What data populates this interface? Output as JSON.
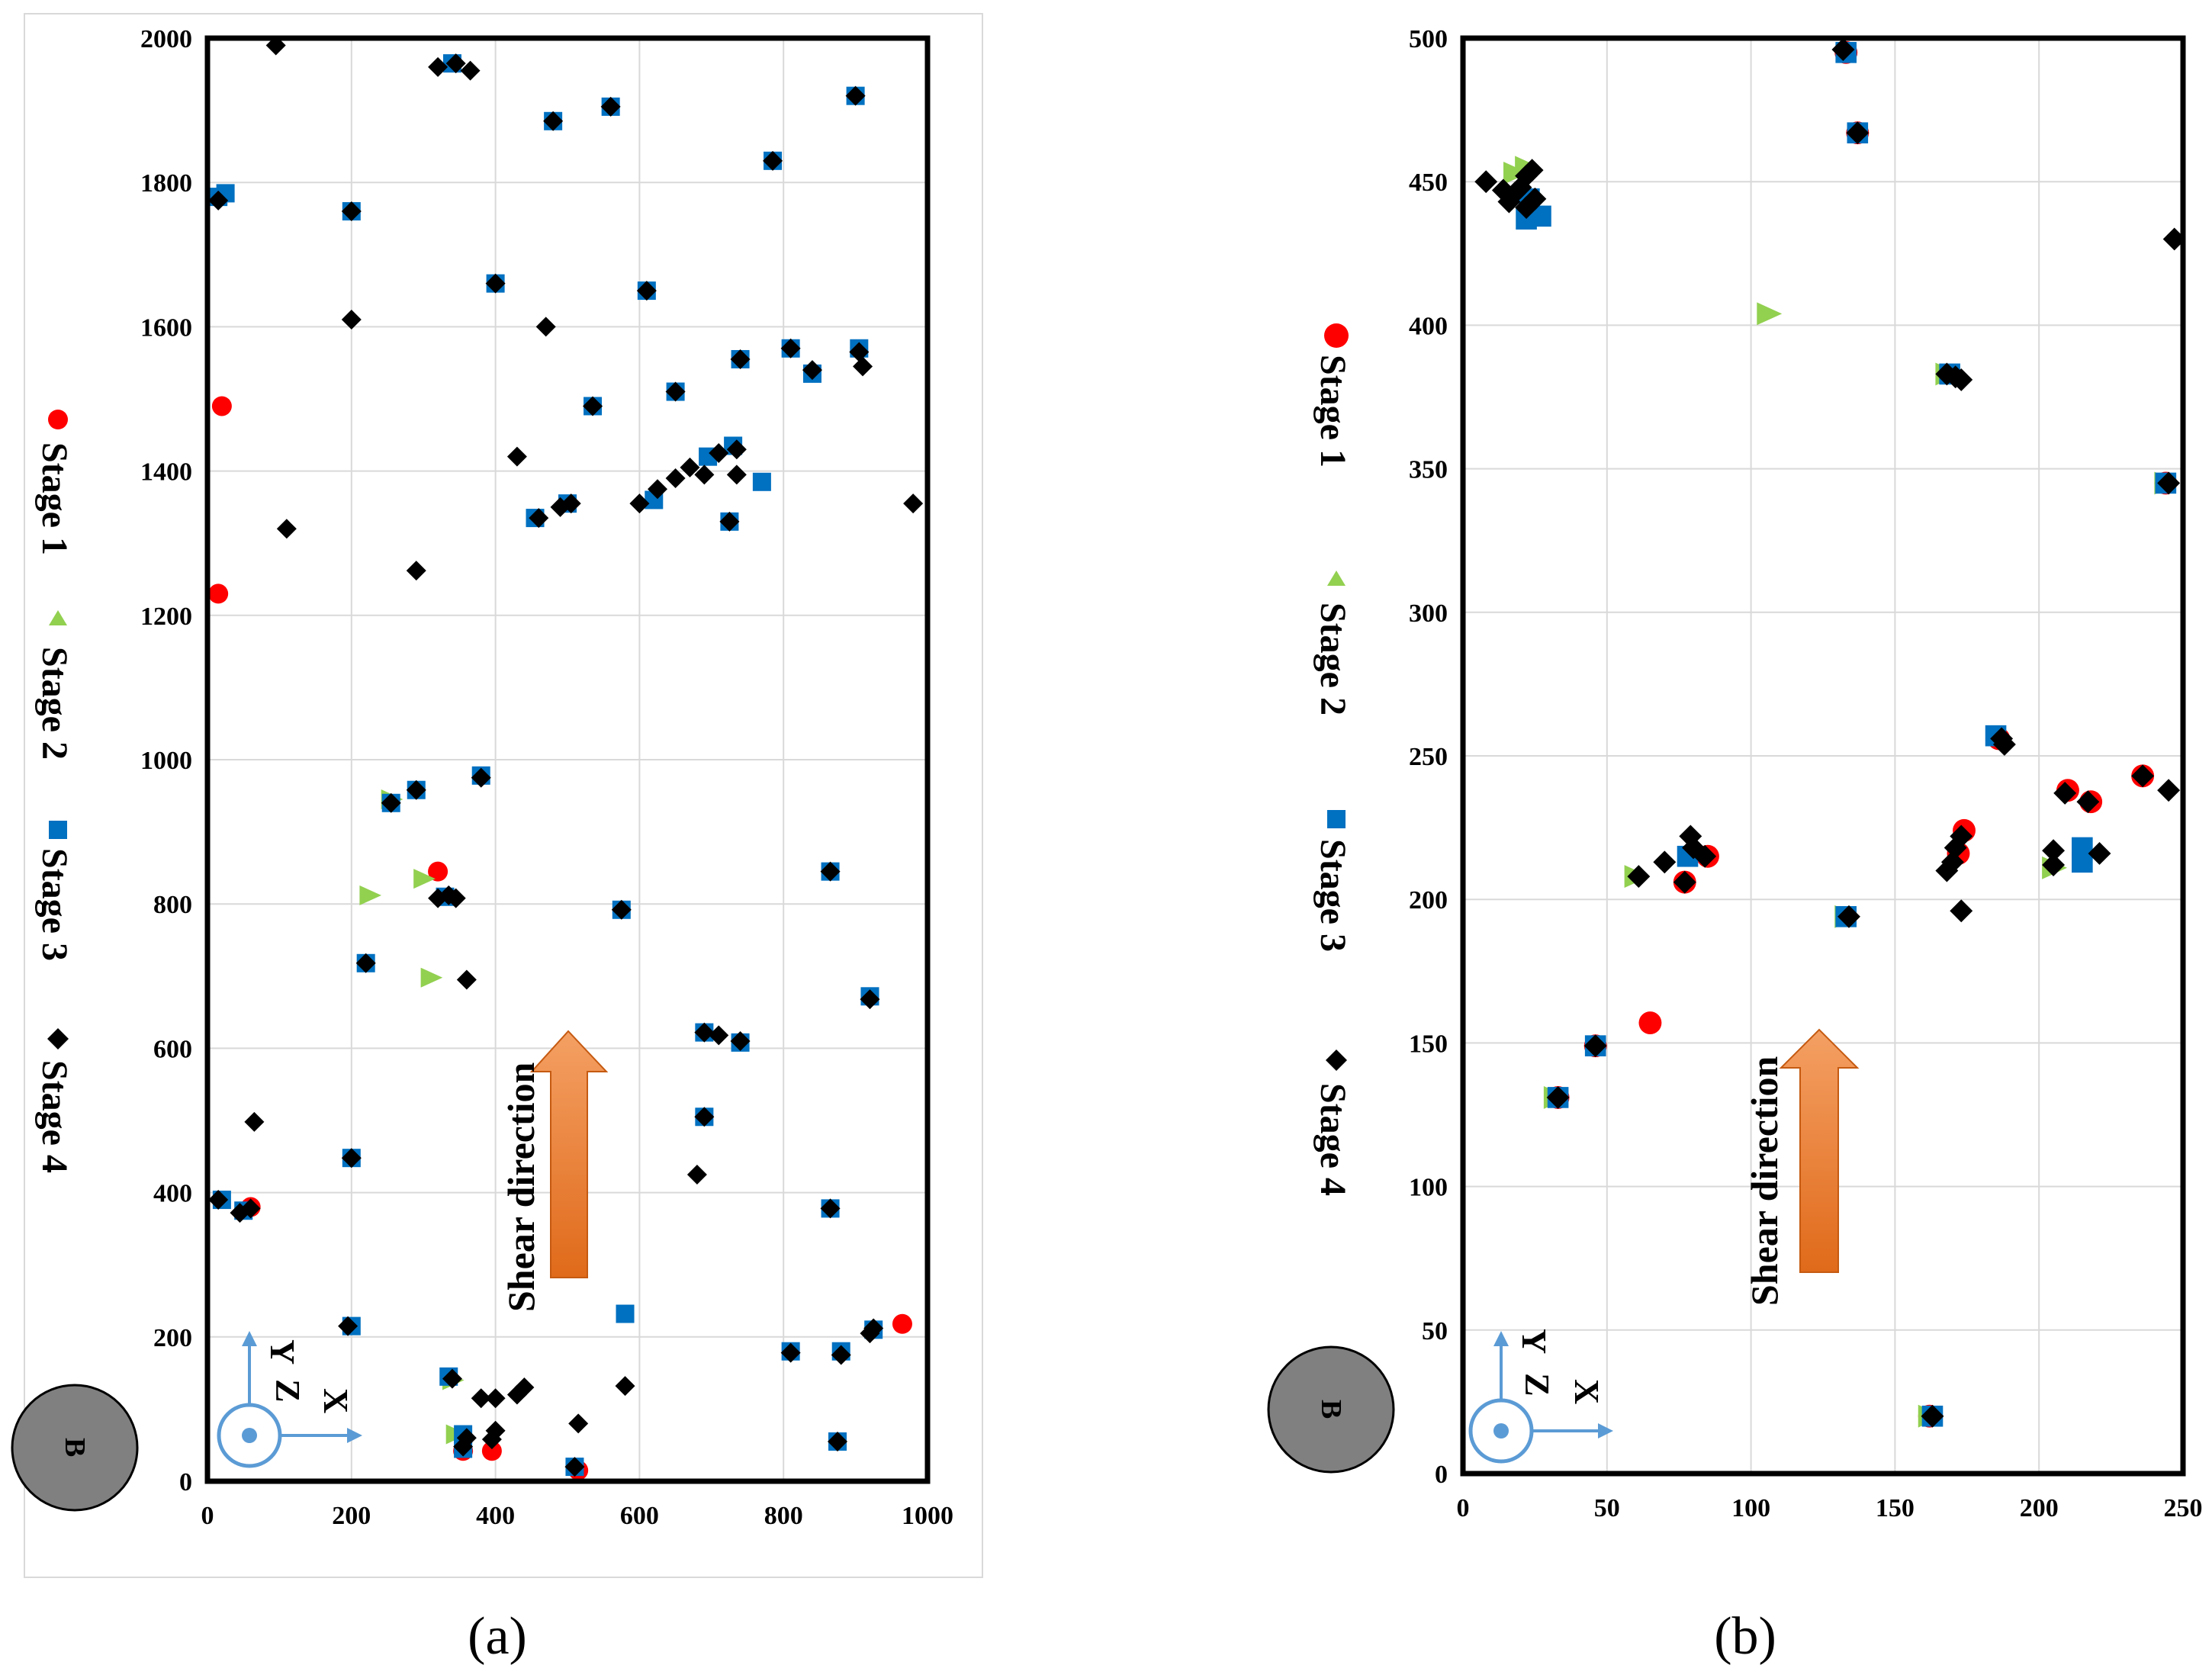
{
  "colors": {
    "stage1": "#ff0000",
    "stage2": "#92d050",
    "stage3": "#0070c0",
    "stage4": "#000000",
    "arrow": "#ed7d31",
    "axis_icon": "#5b9bd5",
    "grid": "#d9d9d9"
  },
  "chart_data": [
    {
      "type": "scatter",
      "panel_label": "(a)",
      "xlim": [
        0,
        1000
      ],
      "ylim": [
        0,
        2000
      ],
      "xticks": [
        0,
        200,
        400,
        600,
        800,
        1000
      ],
      "yticks": [
        0,
        200,
        400,
        600,
        800,
        1000,
        1200,
        1400,
        1600,
        1800,
        2000
      ],
      "legend": [
        "Stage 1",
        "Stage 2",
        "Stage 3",
        "Stage 4"
      ],
      "legend_position": "left, vertical",
      "annotation": "Shear direction",
      "axes_icon": {
        "y": "Y",
        "z": "Z",
        "x": "X"
      },
      "corner_marker": "B",
      "series": [
        {
          "name": "Stage 1",
          "marker": "circle",
          "points": [
            [
              15,
              1230
            ],
            [
              20,
              1490
            ],
            [
              320,
              845
            ],
            [
              965,
              218
            ],
            [
              355,
              42
            ],
            [
              395,
              42
            ],
            [
              60,
              380
            ],
            [
              515,
              15
            ]
          ]
        },
        {
          "name": "Stage 2",
          "marker": "triangle",
          "points": [
            [
              225,
              812
            ],
            [
              310,
              698
            ],
            [
              300,
              835
            ],
            [
              255,
              945
            ],
            [
              340,
              140
            ],
            [
              345,
              65
            ]
          ]
        },
        {
          "name": "Stage 3",
          "marker": "square",
          "points": [
            [
              15,
              1780
            ],
            [
              25,
              1785
            ],
            [
              200,
              1760
            ],
            [
              340,
              1965
            ],
            [
              480,
              1885
            ],
            [
              560,
              1905
            ],
            [
              900,
              1920
            ],
            [
              785,
              1830
            ],
            [
              400,
              1660
            ],
            [
              610,
              1650
            ],
            [
              535,
              1490
            ],
            [
              650,
              1510
            ],
            [
              740,
              1555
            ],
            [
              810,
              1570
            ],
            [
              840,
              1535
            ],
            [
              905,
              1570
            ],
            [
              455,
              1335
            ],
            [
              500,
              1355
            ],
            [
              620,
              1360
            ],
            [
              695,
              1420
            ],
            [
              730,
              1435
            ],
            [
              770,
              1385
            ],
            [
              725,
              1330
            ],
            [
              380,
              978
            ],
            [
              290,
              958
            ],
            [
              255,
              940
            ],
            [
              330,
              810
            ],
            [
              220,
              718
            ],
            [
              575,
              792
            ],
            [
              865,
              845
            ],
            [
              690,
              622
            ],
            [
              740,
              608
            ],
            [
              690,
              505
            ],
            [
              200,
              448
            ],
            [
              865,
              378
            ],
            [
              20,
              390
            ],
            [
              50,
              375
            ],
            [
              200,
              215
            ],
            [
              580,
              232
            ],
            [
              810,
              180
            ],
            [
              880,
              180
            ],
            [
              925,
              210
            ],
            [
              875,
              55
            ],
            [
              335,
              145
            ],
            [
              355,
              45
            ],
            [
              510,
              20
            ],
            [
              920,
              672
            ],
            [
              355,
              65
            ]
          ]
        },
        {
          "name": "Stage 4",
          "marker": "diamond",
          "points": [
            [
              95,
              1990
            ],
            [
              320,
              1960
            ],
            [
              345,
              1965
            ],
            [
              365,
              1955
            ],
            [
              15,
              1775
            ],
            [
              200,
              1760
            ],
            [
              480,
              1885
            ],
            [
              560,
              1905
            ],
            [
              900,
              1920
            ],
            [
              785,
              1830
            ],
            [
              400,
              1660
            ],
            [
              200,
              1610
            ],
            [
              470,
              1600
            ],
            [
              610,
              1650
            ],
            [
              535,
              1490
            ],
            [
              650,
              1510
            ],
            [
              740,
              1555
            ],
            [
              810,
              1570
            ],
            [
              840,
              1540
            ],
            [
              905,
              1565
            ],
            [
              910,
              1545
            ],
            [
              430,
              1420
            ],
            [
              110,
              1320
            ],
            [
              290,
              1262
            ],
            [
              980,
              1355
            ],
            [
              600,
              1355
            ],
            [
              625,
              1375
            ],
            [
              650,
              1390
            ],
            [
              670,
              1405
            ],
            [
              690,
              1395
            ],
            [
              710,
              1425
            ],
            [
              735,
              1430
            ],
            [
              735,
              1395
            ],
            [
              725,
              1330
            ],
            [
              460,
              1335
            ],
            [
              490,
              1350
            ],
            [
              505,
              1355
            ],
            [
              380,
              975
            ],
            [
              290,
              958
            ],
            [
              255,
              940
            ],
            [
              320,
              808
            ],
            [
              335,
              812
            ],
            [
              345,
              808
            ],
            [
              220,
              718
            ],
            [
              360,
              695
            ],
            [
              575,
              792
            ],
            [
              865,
              845
            ],
            [
              690,
              622
            ],
            [
              710,
              618
            ],
            [
              740,
              610
            ],
            [
              690,
              505
            ],
            [
              65,
              498
            ],
            [
              200,
              448
            ],
            [
              680,
              425
            ],
            [
              865,
              378
            ],
            [
              15,
              390
            ],
            [
              45,
              372
            ],
            [
              60,
              378
            ],
            [
              195,
              215
            ],
            [
              580,
              132
            ],
            [
              810,
              178
            ],
            [
              880,
              175
            ],
            [
              920,
              205
            ],
            [
              925,
              212
            ],
            [
              875,
              55
            ],
            [
              340,
              142
            ],
            [
              355,
              48
            ],
            [
              360,
              60
            ],
            [
              380,
              115
            ],
            [
              400,
              115
            ],
            [
              400,
              70
            ],
            [
              430,
              120
            ],
            [
              440,
              130
            ],
            [
              515,
              80
            ],
            [
              510,
              20
            ],
            [
              920,
              668
            ],
            [
              395,
              58
            ]
          ]
        }
      ]
    },
    {
      "type": "scatter",
      "panel_label": "(b)",
      "xlim": [
        0,
        250
      ],
      "ylim": [
        0,
        500
      ],
      "xticks": [
        0,
        50,
        100,
        150,
        200,
        250
      ],
      "yticks": [
        0,
        50,
        100,
        150,
        200,
        250,
        300,
        350,
        400,
        450,
        500
      ],
      "legend": [
        "Stage 1",
        "Stage 2",
        "Stage 3",
        "Stage 4"
      ],
      "legend_position": "left, vertical",
      "annotation": "Shear direction",
      "axes_icon": {
        "y": "Y",
        "z": "Z",
        "x": "X"
      },
      "corner_marker": "B",
      "series": [
        {
          "name": "Stage 1",
          "marker": "circle",
          "points": [
            [
              65,
              157
            ],
            [
              133,
              495
            ],
            [
              137,
              467
            ],
            [
              244,
              345
            ],
            [
              172,
              216
            ],
            [
              174,
              224
            ],
            [
              210,
              238
            ],
            [
              218,
              234
            ],
            [
              236,
              243
            ],
            [
              162,
              20
            ],
            [
              33,
              131
            ],
            [
              46,
              149
            ],
            [
              77,
              206
            ],
            [
              85,
              215
            ],
            [
              186,
              256
            ]
          ]
        },
        {
          "name": "Stage 2",
          "marker": "triangle",
          "points": [
            [
              106,
              404
            ],
            [
              18,
              453
            ],
            [
              22,
              455
            ],
            [
              168,
              383
            ],
            [
              244,
              345
            ],
            [
              205,
              211
            ],
            [
              60,
              208
            ],
            [
              32,
              131
            ],
            [
              162,
              20
            ],
            [
              133,
              194
            ]
          ]
        },
        {
          "name": "Stage 3",
          "marker": "square",
          "points": [
            [
              22,
              437
            ],
            [
              27,
              438
            ],
            [
              23,
              444
            ],
            [
              185,
              257
            ],
            [
              215,
              218
            ],
            [
              215,
              213
            ],
            [
              133,
              495
            ],
            [
              137,
              467
            ],
            [
              33,
              131
            ],
            [
              46,
              149
            ],
            [
              78,
              215
            ],
            [
              163,
              20
            ],
            [
              133,
              194
            ],
            [
              169,
              383
            ],
            [
              244,
              345
            ]
          ]
        },
        {
          "name": "Stage 4",
          "marker": "diamond",
          "points": [
            [
              8,
              450
            ],
            [
              14,
              447
            ],
            [
              16,
              443
            ],
            [
              18,
              446
            ],
            [
              20,
              448
            ],
            [
              22,
              452
            ],
            [
              24,
              454
            ],
            [
              25,
              444
            ],
            [
              22,
              441
            ],
            [
              132,
              496
            ],
            [
              137,
              467
            ],
            [
              168,
              383
            ],
            [
              171,
              382
            ],
            [
              173,
              381
            ],
            [
              247,
              430
            ],
            [
              245,
              345
            ],
            [
              187,
              256
            ],
            [
              188,
              254
            ],
            [
              236,
              243
            ],
            [
              245,
              238
            ],
            [
              209,
              237
            ],
            [
              217,
              234
            ],
            [
              205,
              217
            ],
            [
              205,
              212
            ],
            [
              221,
              216
            ],
            [
              168,
              210
            ],
            [
              170,
              213
            ],
            [
              171,
              218
            ],
            [
              173,
              222
            ],
            [
              173,
              196
            ],
            [
              61,
              208
            ],
            [
              70,
              213
            ],
            [
              79,
              222
            ],
            [
              80,
              218
            ],
            [
              77,
              206
            ],
            [
              84,
              215
            ],
            [
              134,
              194
            ],
            [
              46,
              149
            ],
            [
              33,
              131
            ],
            [
              163,
              20
            ]
          ]
        }
      ]
    }
  ]
}
